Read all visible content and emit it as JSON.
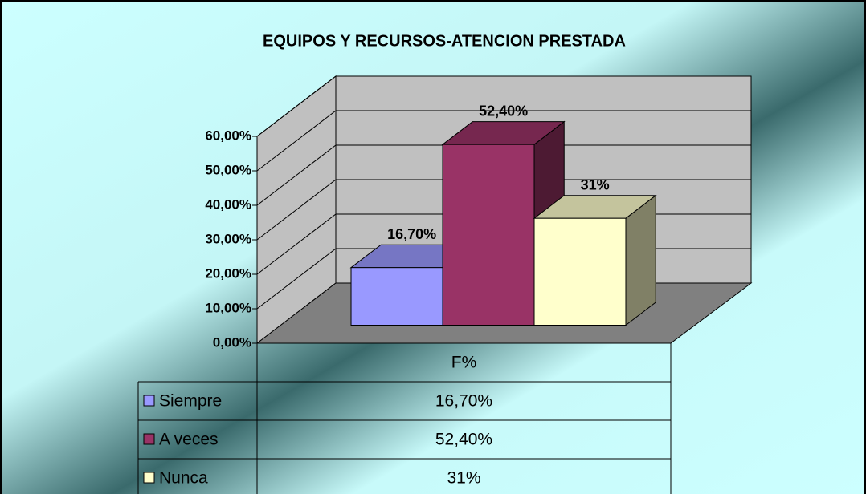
{
  "chart_data": {
    "type": "bar3d",
    "title": "EQUIPOS Y RECURSOS-ATENCION PRESTADA",
    "categories": [
      "F%"
    ],
    "series": [
      {
        "name": "Siempre",
        "color": "#9999ff",
        "values": [
          16.7
        ],
        "value_labels": [
          "16,70%"
        ]
      },
      {
        "name": "A veces",
        "color": "#993366",
        "values": [
          52.4
        ],
        "value_labels": [
          "52,40%"
        ]
      },
      {
        "name": "Nunca",
        "color": "#ffffcc",
        "values": [
          31
        ],
        "value_labels": [
          "31%"
        ]
      }
    ],
    "ylim": [
      0,
      60
    ],
    "yticks": [
      {
        "value": 0,
        "label": "0,00%"
      },
      {
        "value": 10,
        "label": "10,00%"
      },
      {
        "value": 20,
        "label": "20,00%"
      },
      {
        "value": 30,
        "label": "30,00%"
      },
      {
        "value": 40,
        "label": "40,00%"
      },
      {
        "value": 50,
        "label": "50,00%"
      },
      {
        "value": 60,
        "label": "60,00%"
      }
    ],
    "grid": true,
    "data_table": true
  }
}
